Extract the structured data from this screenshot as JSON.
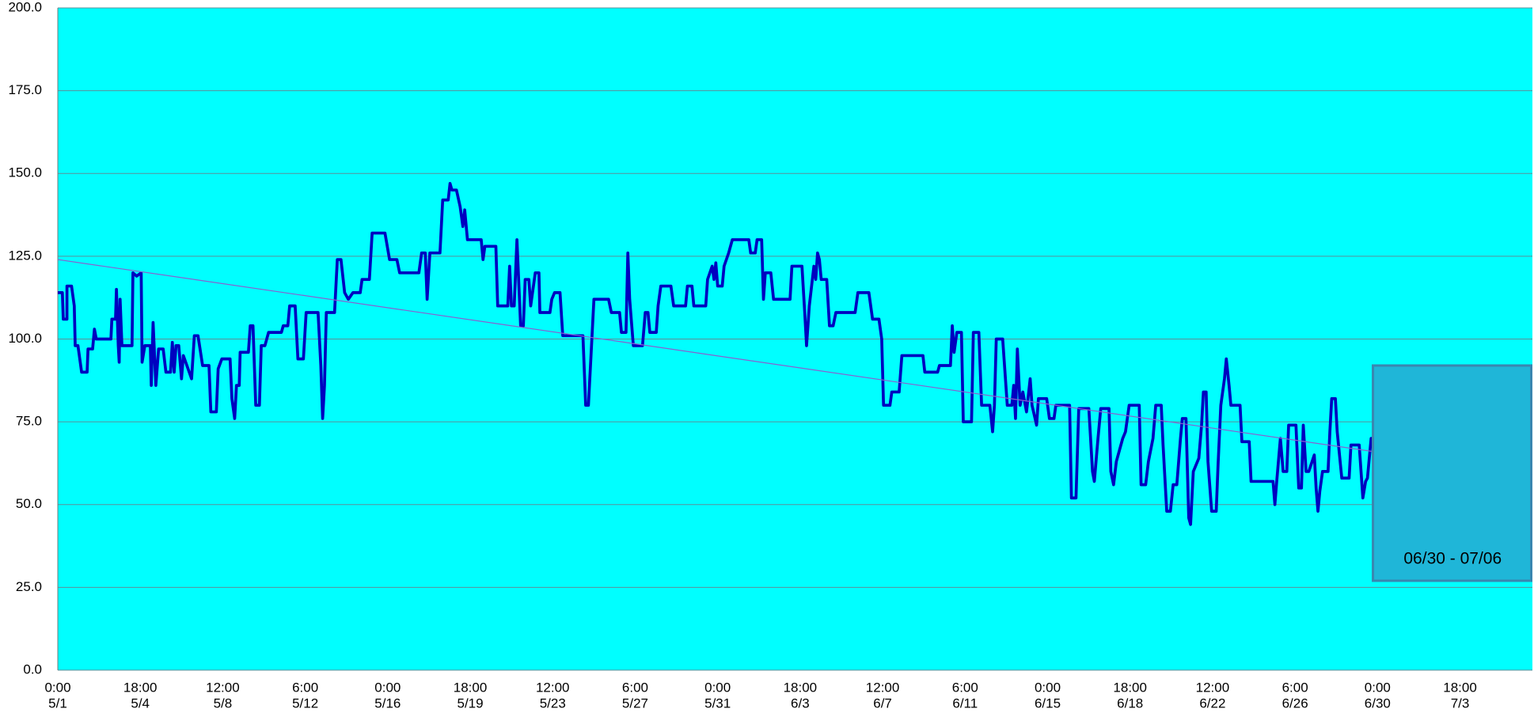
{
  "chart_data": {
    "type": "line",
    "background": "#00ffff",
    "xlim": [
      0,
      1609
    ],
    "ylim": [
      0,
      200
    ],
    "xticks": [
      {
        "value": 0,
        "label": [
          "0:00",
          "5/1"
        ]
      },
      {
        "value": 90,
        "label": [
          "18:00",
          "5/4"
        ]
      },
      {
        "value": 180,
        "label": [
          "12:00",
          "5/8"
        ]
      },
      {
        "value": 270,
        "label": [
          "6:00",
          "5/12"
        ]
      },
      {
        "value": 360,
        "label": [
          "0:00",
          "5/16"
        ]
      },
      {
        "value": 450,
        "label": [
          "18:00",
          "5/19"
        ]
      },
      {
        "value": 540,
        "label": [
          "12:00",
          "5/23"
        ]
      },
      {
        "value": 630,
        "label": [
          "6:00",
          "5/27"
        ]
      },
      {
        "value": 720,
        "label": [
          "0:00",
          "5/31"
        ]
      },
      {
        "value": 810,
        "label": [
          "18:00",
          "6/3"
        ]
      },
      {
        "value": 900,
        "label": [
          "12:00",
          "6/7"
        ]
      },
      {
        "value": 990,
        "label": [
          "6:00",
          "6/11"
        ]
      },
      {
        "value": 1080,
        "label": [
          "0:00",
          "6/15"
        ]
      },
      {
        "value": 1170,
        "label": [
          "18:00",
          "6/18"
        ]
      },
      {
        "value": 1260,
        "label": [
          "12:00",
          "6/22"
        ]
      },
      {
        "value": 1350,
        "label": [
          "6:00",
          "6/26"
        ]
      },
      {
        "value": 1440,
        "label": [
          "0:00",
          "6/30"
        ]
      },
      {
        "value": 1530,
        "label": [
          "18:00",
          "7/3"
        ]
      }
    ],
    "yticks": [
      {
        "value": 0,
        "label": "0.0"
      },
      {
        "value": 25,
        "label": "25.0"
      },
      {
        "value": 50,
        "label": "50.0"
      },
      {
        "value": 75,
        "label": "75.0"
      },
      {
        "value": 100,
        "label": "100.0"
      },
      {
        "value": 125,
        "label": "125.0"
      },
      {
        "value": 150,
        "label": "150.0"
      },
      {
        "value": 175,
        "label": "175.0"
      },
      {
        "value": 200,
        "label": "200.0"
      }
    ],
    "grid": true,
    "series": [
      {
        "color": "#0000c0",
        "x": [
          0,
          5,
          6,
          10,
          10,
          15,
          18,
          19,
          22,
          26,
          32,
          33,
          38,
          40,
          42,
          58,
          59,
          63,
          64,
          66,
          67,
          68,
          70,
          81,
          82,
          86,
          91,
          92,
          95,
          101,
          102,
          104,
          107,
          110,
          115,
          118,
          123,
          125,
          127,
          129,
          132,
          135,
          137,
          146,
          149,
          153,
          158,
          165,
          167,
          173,
          175,
          179,
          188,
          190,
          193,
          195,
          198,
          199,
          208,
          210,
          213,
          216,
          220,
          222,
          226,
          230,
          244,
          246,
          251,
          253,
          259,
          262,
          268,
          271,
          284,
          287,
          289,
          291,
          293,
          302,
          305,
          309,
          313,
          317,
          322,
          330,
          332,
          340,
          343,
          357,
          362,
          370,
          373,
          394,
          397,
          401,
          403,
          406,
          417,
          420,
          426,
          428,
          430,
          435,
          439,
          442,
          444,
          447,
          462,
          464,
          466,
          478,
          480,
          491,
          493,
          495,
          498,
          501,
          505,
          508,
          510,
          514,
          516,
          521,
          525,
          526,
          537,
          539,
          542,
          548,
          551,
          573,
          576,
          579,
          585,
          601,
          604,
          613,
          615,
          620,
          622,
          624,
          628,
          638,
          641,
          644,
          646,
          653,
          655,
          658,
          669,
          672,
          685,
          687,
          692,
          694,
          707,
          709,
          714,
          716,
          718,
          720,
          725,
          727,
          732,
          736,
          754,
          756,
          761,
          763,
          768,
          770,
          772,
          778,
          781,
          799,
          801,
          812,
          815,
          817,
          820,
          825,
          827,
          829,
          831,
          833,
          839,
          842,
          846,
          849,
          870,
          873,
          885,
          889,
          896,
          899,
          901,
          908,
          910,
          918,
          921,
          944,
          946,
          960,
          962,
          974,
          976,
          978,
          981,
          986,
          988,
          997,
          999,
          1005,
          1008,
          1017,
          1020,
          1022,
          1024,
          1031,
          1036,
          1041,
          1043,
          1045,
          1047,
          1050,
          1053,
          1057,
          1061,
          1063,
          1068,
          1070,
          1079,
          1082,
          1087,
          1089,
          1104,
          1106,
          1111,
          1114,
          1125,
          1129,
          1131,
          1135,
          1138,
          1147,
          1149,
          1152,
          1155,
          1162,
          1165,
          1169,
          1180,
          1182,
          1187,
          1190,
          1195,
          1198,
          1204,
          1206,
          1210,
          1214,
          1217,
          1221,
          1225,
          1227,
          1231,
          1234,
          1236,
          1239,
          1245,
          1248,
          1250,
          1253,
          1255,
          1259,
          1264,
          1266,
          1269,
          1273,
          1275,
          1278,
          1280,
          1290,
          1292,
          1300,
          1302,
          1326,
          1328,
          1330,
          1334,
          1337,
          1341,
          1343,
          1351,
          1354,
          1357,
          1359,
          1362,
          1365,
          1371,
          1373,
          1375,
          1377,
          1380,
          1386,
          1388,
          1390,
          1394,
          1396,
          1401,
          1409,
          1411,
          1420,
          1424,
          1427,
          1429,
          1433,
          1440,
          1442,
          1447,
          1450,
          1457,
          1460,
          1465,
          1468,
          1470,
          1478,
          1482,
          1486,
          1493,
          1495,
          1501,
          1503,
          1507,
          1510,
          1516,
          1519,
          1521,
          1524,
          1526,
          1533,
          1535,
          1539,
          1542,
          1546,
          1548,
          1554,
          1558,
          1564,
          1566,
          1575,
          1577,
          1584,
          1586,
          1589,
          1593,
          1597,
          1604,
          1606,
          1607,
          1609
        ],
        "values": [
          114,
          114,
          106,
          106,
          116,
          116,
          110,
          98,
          98,
          90,
          90,
          97,
          97,
          103,
          100,
          100,
          106,
          106,
          115,
          98,
          93,
          112,
          98,
          98,
          120,
          119,
          120,
          93,
          98,
          98,
          86,
          105,
          86,
          97,
          97,
          90,
          90,
          99,
          90,
          98,
          98,
          88,
          95,
          88,
          101,
          101,
          92,
          92,
          78,
          78,
          91,
          94,
          94,
          82,
          76,
          86,
          86,
          96,
          96,
          104,
          104,
          80,
          80,
          98,
          98,
          102,
          102,
          104,
          104,
          110,
          110,
          94,
          94,
          108,
          108,
          92,
          76,
          86,
          108,
          108,
          124,
          124,
          114,
          112,
          114,
          114,
          118,
          118,
          132,
          132,
          124,
          124,
          120,
          120,
          126,
          126,
          112,
          126,
          126,
          142,
          142,
          147,
          145,
          145,
          140,
          134,
          139,
          130,
          130,
          124,
          128,
          128,
          110,
          110,
          122,
          110,
          110,
          130,
          104,
          104,
          118,
          118,
          110,
          120,
          120,
          108,
          108,
          112,
          114,
          114,
          101,
          101,
          80,
          80,
          112,
          112,
          108,
          108,
          102,
          102,
          126,
          112,
          98,
          98,
          108,
          108,
          102,
          102,
          110,
          116,
          116,
          110,
          110,
          116,
          116,
          110,
          110,
          118,
          122,
          118,
          123,
          116,
          116,
          122,
          126,
          130,
          130,
          126,
          126,
          130,
          130,
          112,
          120,
          120,
          112,
          112,
          122,
          122,
          108,
          98,
          110,
          122,
          118,
          126,
          124,
          118,
          118,
          104,
          104,
          108,
          108,
          114,
          114,
          106,
          106,
          100,
          80,
          80,
          84,
          84,
          95,
          95,
          90,
          90,
          92,
          92,
          104,
          96,
          102,
          102,
          75,
          75,
          102,
          102,
          80,
          80,
          72,
          80,
          100,
          100,
          80,
          80,
          86,
          76,
          97,
          80,
          84,
          78,
          88,
          80,
          74,
          82,
          82,
          76,
          76,
          80,
          80,
          52,
          52,
          79,
          79,
          60,
          57,
          70,
          79,
          79,
          60,
          56,
          63,
          70,
          72,
          80,
          80,
          56,
          56,
          63,
          70,
          80,
          80,
          68,
          48,
          48,
          56,
          56,
          70,
          76,
          76,
          46,
          44,
          60,
          64,
          74,
          84,
          84,
          63,
          48,
          48,
          62,
          80,
          88,
          94,
          86,
          80,
          80,
          69,
          69,
          57,
          57,
          50,
          57,
          70,
          60,
          60,
          74,
          74,
          55,
          55,
          74,
          60,
          60,
          65,
          55,
          48,
          54,
          60,
          60,
          72,
          82,
          82,
          72,
          58,
          58,
          68,
          68,
          52,
          57,
          58,
          70,
          70,
          74,
          74,
          52,
          52,
          58,
          68,
          68,
          44,
          44,
          58,
          70,
          70,
          48,
          48,
          54,
          54,
          78,
          78,
          50,
          38,
          44,
          50,
          50,
          58,
          58,
          40,
          40,
          42,
          50,
          62,
          62,
          40,
          40,
          54,
          54,
          48,
          42,
          44,
          52,
          52,
          48,
          55,
          55
        ]
      }
    ],
    "trendline": {
      "color": "#8a5fd0",
      "x": [
        0,
        1609
      ],
      "values": [
        124,
        59
      ]
    },
    "annotation": {
      "text": "06/30 - 07/06",
      "x": [
        1435,
        1609
      ],
      "y": [
        27,
        92
      ],
      "fill": "#1fb6d8",
      "stroke": "#3a86b0"
    }
  }
}
